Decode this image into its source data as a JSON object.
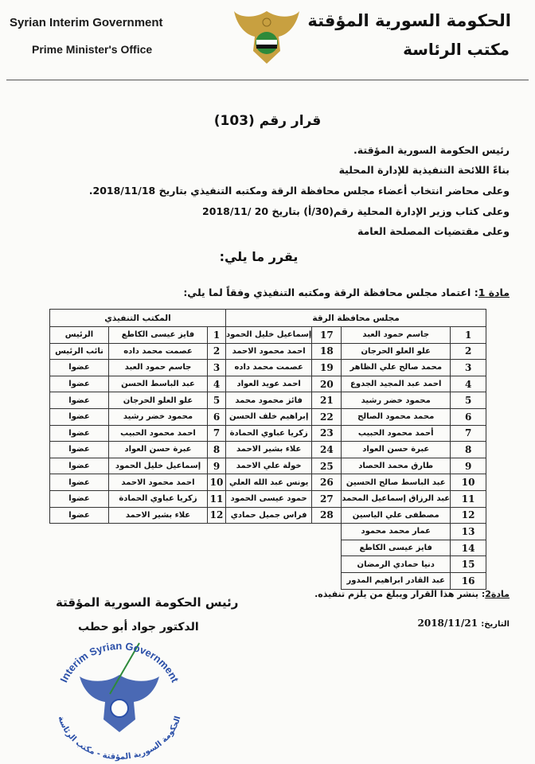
{
  "header": {
    "en_line1": "Syrian Interim Government",
    "en_line2": "Prime Minister's Office",
    "ar_line1": "الحكومة السورية المؤقتة",
    "ar_line2": "مكتب الرئاسة",
    "logo_icon": "eagle-emblem-icon"
  },
  "title": "قرار رقم (103)",
  "preamble": [
    "رئيس الحكومة السورية المؤقتة.",
    "بناءً اللائحة التنفيذية للإدارة المحلية",
    "وعلى محاضر انتخاب أعضاء مجلس محافظة الرقة ومكتبه التنفيذي بتاريخ 2018/11/18.",
    "وعلى كتاب وزير الإدارة المحلية رقم(30/أ) بتاريخ 20 /2018/11",
    "وعلى مقتضيات المصلحة العامة"
  ],
  "decides": "يقرر ما يلي:",
  "article1": {
    "label": "مادة 1",
    "text": ": اعتماد مجلس محافظة الرقة ومكتبه التنفيذي وفقاً لما يلي:"
  },
  "table": {
    "council_header": "مجلس محافظة الرقة",
    "office_header": "المكتب التنفيذي",
    "council_col1": [
      {
        "n": "1",
        "name": "جاسم حمود العبد"
      },
      {
        "n": "2",
        "name": "علو العلو الحرجان"
      },
      {
        "n": "3",
        "name": "محمد صالح علي الظاهر"
      },
      {
        "n": "4",
        "name": "احمد عبد المجيد الجدوع"
      },
      {
        "n": "5",
        "name": "محمود خضر رشيد"
      },
      {
        "n": "6",
        "name": "محمد محمود الصالح"
      },
      {
        "n": "7",
        "name": "أحمد محمود الحبيب"
      },
      {
        "n": "8",
        "name": "عبرة حسن العواد"
      },
      {
        "n": "9",
        "name": "طارق محمد الحصاد"
      },
      {
        "n": "10",
        "name": "عبد الباسط صالح الحسين"
      },
      {
        "n": "11",
        "name": "عبد الرزاق إسماعيل المحمد"
      },
      {
        "n": "12",
        "name": "مصطفى علي الياسين"
      },
      {
        "n": "13",
        "name": "عمار محمد محمود"
      },
      {
        "n": "14",
        "name": "فايز عيسى الكاطع"
      },
      {
        "n": "15",
        "name": "دنيا حمادي الرمضان"
      },
      {
        "n": "16",
        "name": "عبد القادر ابراهيم المدور"
      }
    ],
    "council_col2": [
      {
        "n": "17",
        "name": "إسماعيل خليل الحمود"
      },
      {
        "n": "18",
        "name": "احمد محمود الاحمد"
      },
      {
        "n": "19",
        "name": "عصمت محمد داده"
      },
      {
        "n": "20",
        "name": "احمد عويد العواد"
      },
      {
        "n": "21",
        "name": "فائز محمود محمد"
      },
      {
        "n": "22",
        "name": "إبراهيم خلف الحسن"
      },
      {
        "n": "23",
        "name": "زكريا عباوي الحمادة"
      },
      {
        "n": "24",
        "name": "علاء بشير الاحمد"
      },
      {
        "n": "25",
        "name": "خولة علي الاحمد"
      },
      {
        "n": "26",
        "name": "يونس عبد الله العلي"
      },
      {
        "n": "27",
        "name": "حمود عيسى الحمود"
      },
      {
        "n": "28",
        "name": "فراس جميل حمادي"
      }
    ],
    "office": [
      {
        "n": "1",
        "name": "فايز عيسى الكاطع",
        "role": "الرئيس"
      },
      {
        "n": "2",
        "name": "عصمت محمد داده",
        "role": "نائب الرئيس"
      },
      {
        "n": "3",
        "name": "جاسم حمود العبد",
        "role": "عضوا"
      },
      {
        "n": "4",
        "name": "عبد الباسط الحسن",
        "role": "عضوا"
      },
      {
        "n": "5",
        "name": "علو العلو الحرجان",
        "role": "عضوا"
      },
      {
        "n": "6",
        "name": "محمود خضر رشيد",
        "role": "عضوا"
      },
      {
        "n": "7",
        "name": "احمد محمود الحبيب",
        "role": "عضوا"
      },
      {
        "n": "8",
        "name": "عبرة حسن العواد",
        "role": "عضوا"
      },
      {
        "n": "9",
        "name": "إسماعيل خليل الحمود",
        "role": "عضوا"
      },
      {
        "n": "10",
        "name": "احمد محمود الاحمد",
        "role": "عضوا"
      },
      {
        "n": "11",
        "name": "زكريا عباوي الحمادة",
        "role": "عضوا"
      },
      {
        "n": "12",
        "name": "علاء بشير الاحمد",
        "role": "عضوا"
      }
    ]
  },
  "article2": {
    "label": "مادة2",
    "text": ": ينشر هذا القرار ويبلغ من يلزم تنفيذه."
  },
  "date": {
    "label": "التاريخ:",
    "value": "2018/11/21"
  },
  "signature": {
    "title": "رئيس الحكومة السورية المؤقتة",
    "name": "الدكتور جواد أبو حطب"
  },
  "stamp": {
    "text_en": "Interim Syrian Government",
    "text_ar": "الحكومة السورية المؤقتة - مكتب الرئاسة",
    "icon": "eagle-stamp-icon",
    "color": "#2a4fa8"
  }
}
